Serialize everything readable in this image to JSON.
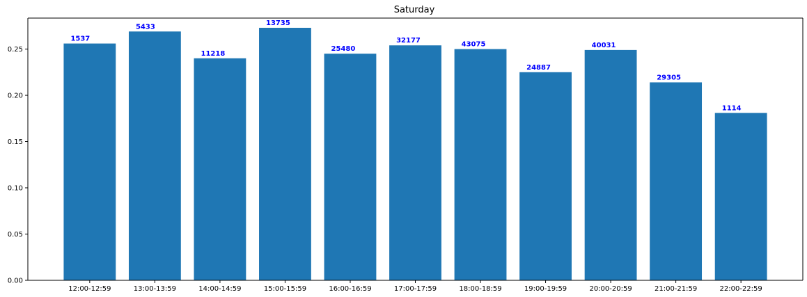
{
  "chart_data": {
    "type": "bar",
    "title": "Saturday",
    "xlabel": "",
    "ylabel": "",
    "categories": [
      "12:00-12:59",
      "13:00-13:59",
      "14:00-14:59",
      "15:00-15:59",
      "16:00-16:59",
      "17:00-17:59",
      "18:00-18:59",
      "19:00-19:59",
      "20:00-20:59",
      "21:00-21:59",
      "22:00-22:59"
    ],
    "values": [
      0.256,
      0.269,
      0.24,
      0.273,
      0.245,
      0.254,
      0.25,
      0.225,
      0.249,
      0.214,
      0.181
    ],
    "data_labels": [
      "1537",
      "5433",
      "11218",
      "13735",
      "25480",
      "32177",
      "43075",
      "24887",
      "40031",
      "29305",
      "1114"
    ],
    "ylim": [
      0,
      0.2835
    ],
    "yticks": [
      0.0,
      0.05,
      0.1,
      0.15,
      0.2,
      0.25
    ],
    "ytick_labels": [
      "0.00",
      "0.05",
      "0.10",
      "0.15",
      "0.20",
      "0.25"
    ],
    "grid": false,
    "colors": {
      "bar": "#1f77b4",
      "data_label": "#0000ff",
      "axis": "#000000",
      "background": "#ffffff"
    }
  }
}
